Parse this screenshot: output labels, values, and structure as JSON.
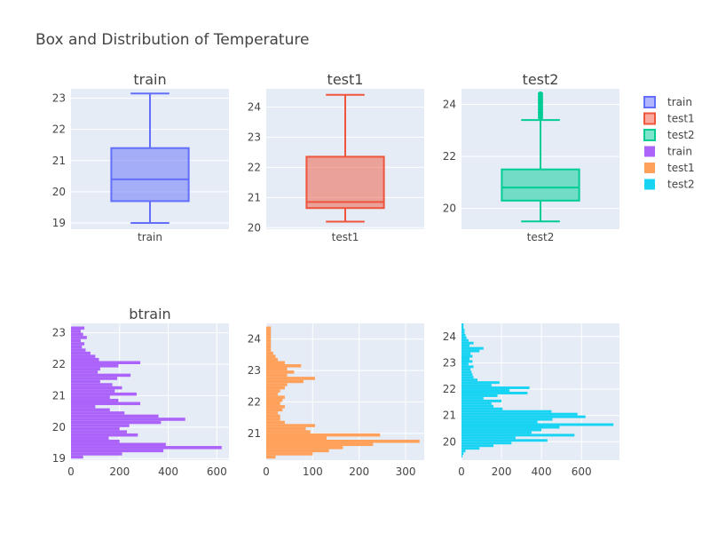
{
  "title": "Box and Distribution of Temperature",
  "colors": {
    "train_box": "#636efa",
    "test1_box": "#ef553b",
    "test2_box": "#00cc96",
    "train_hist": "#ab63fa",
    "test1_hist": "#ffa15a",
    "test2_hist": "#19d3f3",
    "plot_bg": "#e5ecf6",
    "grid": "#ffffff"
  },
  "legend": [
    {
      "name": "train",
      "kind": "box",
      "color_key": "train_box"
    },
    {
      "name": "test1",
      "kind": "box",
      "color_key": "test1_box"
    },
    {
      "name": "test2",
      "kind": "box",
      "color_key": "test2_box"
    },
    {
      "name": "train",
      "kind": "hist",
      "color_key": "train_hist"
    },
    {
      "name": "test1",
      "kind": "hist",
      "color_key": "test1_hist"
    },
    {
      "name": "test2",
      "kind": "hist",
      "color_key": "test2_hist"
    }
  ],
  "chart_data": [
    {
      "type": "box",
      "title": "train",
      "category": "train",
      "color_key": "train_box",
      "ylim": [
        18.8,
        23.3
      ],
      "yticks": [
        19,
        20,
        21,
        22,
        23
      ],
      "stats": {
        "min": 19.0,
        "q1": 19.7,
        "median": 20.4,
        "q3": 21.4,
        "max": 23.15
      },
      "outliers": []
    },
    {
      "type": "box",
      "title": "test1",
      "category": "test1",
      "color_key": "test1_box",
      "ylim": [
        19.95,
        24.6
      ],
      "yticks": [
        20,
        21,
        22,
        23,
        24
      ],
      "stats": {
        "min": 20.2,
        "q1": 20.65,
        "median": 20.85,
        "q3": 22.35,
        "max": 24.4
      },
      "outliers": []
    },
    {
      "type": "box",
      "title": "test2",
      "category": "test2",
      "color_key": "test2_box",
      "ylim": [
        19.2,
        24.6
      ],
      "yticks": [
        20,
        22,
        24
      ],
      "stats": {
        "min": 19.5,
        "q1": 20.3,
        "median": 20.8,
        "q3": 21.5,
        "max": 23.4
      },
      "outliers": [
        23.5,
        23.6,
        23.7,
        23.8,
        23.9,
        24.0,
        24.1,
        24.2,
        24.3,
        24.4
      ]
    },
    {
      "type": "bar",
      "orientation": "horizontal",
      "title": "btrain",
      "color_key": "train_hist",
      "ylim": [
        18.95,
        23.3
      ],
      "yticks": [
        19,
        20,
        21,
        22,
        23
      ],
      "xlim": [
        0,
        650
      ],
      "xticks": [
        0,
        200,
        400,
        600
      ],
      "bin_width": 0.1,
      "bins_start": 19.0,
      "counts": [
        50,
        210,
        380,
        620,
        390,
        200,
        155,
        275,
        230,
        200,
        240,
        370,
        470,
        360,
        220,
        160,
        100,
        285,
        195,
        160,
        270,
        180,
        210,
        170,
        120,
        190,
        245,
        110,
        120,
        195,
        285,
        115,
        100,
        80,
        60,
        45,
        55,
        40,
        65,
        50,
        40,
        55
      ]
    },
    {
      "type": "bar",
      "orientation": "horizontal",
      "title": "",
      "color_key": "test1_hist",
      "ylim": [
        20.15,
        24.5
      ],
      "yticks": [
        21,
        22,
        23,
        24
      ],
      "xlim": [
        0,
        340
      ],
      "xticks": [
        0,
        100,
        200,
        300
      ],
      "bin_width": 0.1,
      "bins_start": 20.2,
      "counts": [
        20,
        100,
        135,
        165,
        230,
        330,
        130,
        245,
        95,
        85,
        105,
        40,
        30,
        30,
        25,
        35,
        40,
        30,
        35,
        40,
        25,
        30,
        40,
        45,
        80,
        105,
        45,
        60,
        45,
        75,
        40,
        25,
        20,
        15,
        10,
        10,
        10,
        10,
        10,
        10,
        10,
        10
      ]
    },
    {
      "type": "bar",
      "orientation": "horizontal",
      "title": "",
      "color_key": "test2_hist",
      "ylim": [
        19.3,
        24.5
      ],
      "yticks": [
        20,
        21,
        22,
        23,
        24
      ],
      "xlim": [
        0,
        790
      ],
      "xticks": [
        0,
        200,
        400,
        600
      ],
      "bin_width": 0.1,
      "bins_start": 19.4,
      "counts": [
        5,
        10,
        20,
        90,
        160,
        250,
        430,
        270,
        565,
        350,
        400,
        490,
        760,
        380,
        455,
        620,
        580,
        450,
        205,
        160,
        150,
        200,
        110,
        180,
        330,
        240,
        340,
        150,
        190,
        80,
        60,
        55,
        50,
        45,
        60,
        35,
        55,
        40,
        55,
        45,
        90,
        110,
        40,
        60,
        35,
        25,
        20,
        15,
        15,
        10,
        10
      ]
    }
  ]
}
